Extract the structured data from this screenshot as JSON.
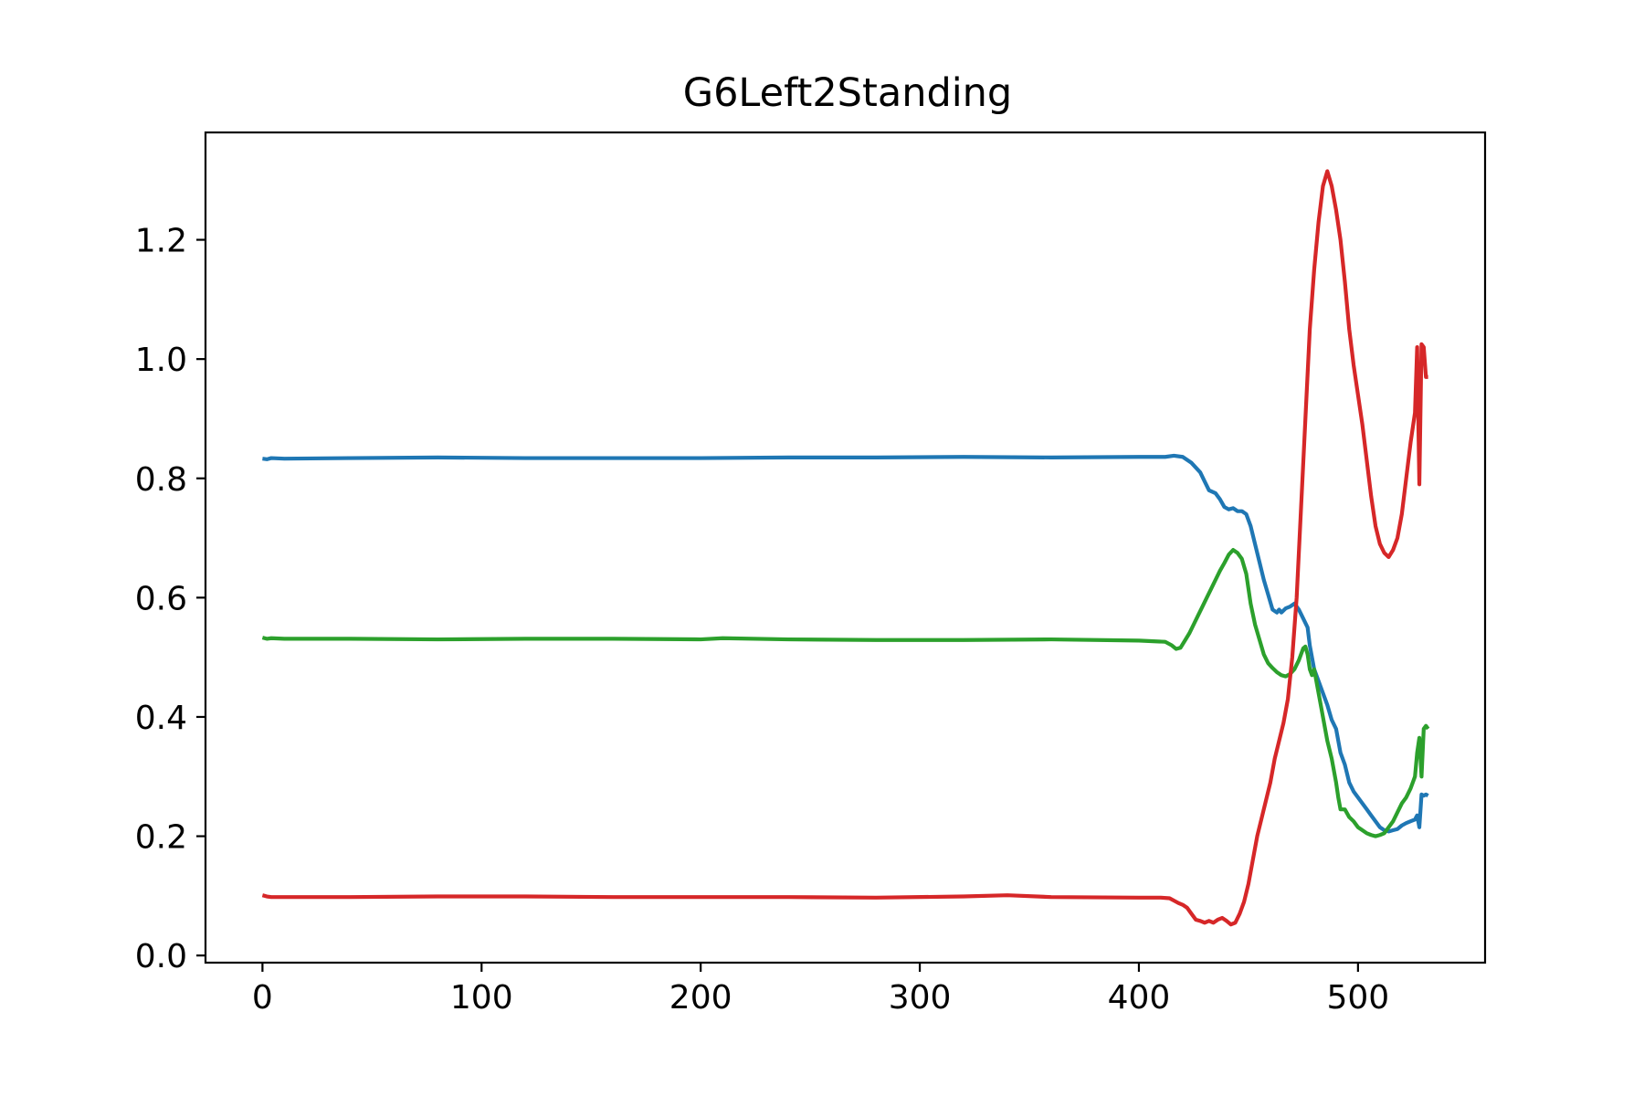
{
  "chart_data": {
    "type": "line",
    "title": "G6Left2Standing",
    "xlabel": "",
    "ylabel": "",
    "xlim": [
      -26,
      558
    ],
    "ylim": [
      -0.012,
      1.38
    ],
    "xticks": [
      0,
      100,
      200,
      300,
      400,
      500
    ],
    "xtick_labels": [
      "0",
      "100",
      "200",
      "300",
      "400",
      "500"
    ],
    "yticks": [
      0.0,
      0.2,
      0.4,
      0.6,
      0.8,
      1.0,
      1.2
    ],
    "ytick_labels": [
      "0.0",
      "0.2",
      "0.4",
      "0.6",
      "0.8",
      "1.0",
      "1.2"
    ],
    "grid": false,
    "legend": false,
    "series": [
      {
        "color": "#1f77b4",
        "points": [
          [
            0,
            0.833
          ],
          [
            2,
            0.832
          ],
          [
            4,
            0.834
          ],
          [
            10,
            0.833
          ],
          [
            40,
            0.834
          ],
          [
            80,
            0.835
          ],
          [
            120,
            0.834
          ],
          [
            160,
            0.834
          ],
          [
            200,
            0.834
          ],
          [
            240,
            0.835
          ],
          [
            280,
            0.835
          ],
          [
            320,
            0.836
          ],
          [
            360,
            0.835
          ],
          [
            400,
            0.836
          ],
          [
            412,
            0.836
          ],
          [
            416,
            0.838
          ],
          [
            420,
            0.836
          ],
          [
            424,
            0.826
          ],
          [
            428,
            0.81
          ],
          [
            430,
            0.795
          ],
          [
            432,
            0.78
          ],
          [
            435,
            0.775
          ],
          [
            437,
            0.765
          ],
          [
            439,
            0.752
          ],
          [
            441,
            0.748
          ],
          [
            443,
            0.75
          ],
          [
            445,
            0.745
          ],
          [
            447,
            0.745
          ],
          [
            449,
            0.74
          ],
          [
            451,
            0.72
          ],
          [
            453,
            0.69
          ],
          [
            455,
            0.66
          ],
          [
            457,
            0.63
          ],
          [
            459,
            0.605
          ],
          [
            461,
            0.58
          ],
          [
            463,
            0.575
          ],
          [
            464,
            0.58
          ],
          [
            465,
            0.575
          ],
          [
            467,
            0.582
          ],
          [
            469,
            0.585
          ],
          [
            471,
            0.59
          ],
          [
            473,
            0.58
          ],
          [
            475,
            0.565
          ],
          [
            477,
            0.55
          ],
          [
            478,
            0.52
          ],
          [
            480,
            0.48
          ],
          [
            482,
            0.46
          ],
          [
            484,
            0.44
          ],
          [
            486,
            0.42
          ],
          [
            488,
            0.395
          ],
          [
            490,
            0.38
          ],
          [
            492,
            0.34
          ],
          [
            494,
            0.32
          ],
          [
            496,
            0.29
          ],
          [
            498,
            0.275
          ],
          [
            500,
            0.265
          ],
          [
            502,
            0.255
          ],
          [
            504,
            0.245
          ],
          [
            506,
            0.235
          ],
          [
            508,
            0.225
          ],
          [
            510,
            0.215
          ],
          [
            512,
            0.21
          ],
          [
            514,
            0.208
          ],
          [
            516,
            0.21
          ],
          [
            518,
            0.212
          ],
          [
            520,
            0.218
          ],
          [
            522,
            0.222
          ],
          [
            524,
            0.225
          ],
          [
            526,
            0.228
          ],
          [
            527,
            0.235
          ],
          [
            528,
            0.215
          ],
          [
            529,
            0.27
          ],
          [
            530,
            0.268
          ],
          [
            531,
            0.27
          ],
          [
            532,
            0.268
          ]
        ]
      },
      {
        "color": "#2ca02c",
        "points": [
          [
            0,
            0.533
          ],
          [
            2,
            0.531
          ],
          [
            4,
            0.532
          ],
          [
            10,
            0.531
          ],
          [
            40,
            0.531
          ],
          [
            80,
            0.53
          ],
          [
            120,
            0.531
          ],
          [
            160,
            0.531
          ],
          [
            200,
            0.53
          ],
          [
            210,
            0.532
          ],
          [
            240,
            0.53
          ],
          [
            280,
            0.529
          ],
          [
            320,
            0.529
          ],
          [
            360,
            0.53
          ],
          [
            400,
            0.528
          ],
          [
            412,
            0.526
          ],
          [
            415,
            0.52
          ],
          [
            417,
            0.514
          ],
          [
            419,
            0.516
          ],
          [
            421,
            0.528
          ],
          [
            423,
            0.54
          ],
          [
            425,
            0.555
          ],
          [
            427,
            0.57
          ],
          [
            429,
            0.585
          ],
          [
            431,
            0.6
          ],
          [
            433,
            0.615
          ],
          [
            435,
            0.63
          ],
          [
            437,
            0.645
          ],
          [
            439,
            0.658
          ],
          [
            441,
            0.672
          ],
          [
            443,
            0.68
          ],
          [
            445,
            0.675
          ],
          [
            447,
            0.665
          ],
          [
            449,
            0.64
          ],
          [
            451,
            0.59
          ],
          [
            453,
            0.555
          ],
          [
            455,
            0.53
          ],
          [
            457,
            0.505
          ],
          [
            459,
            0.49
          ],
          [
            461,
            0.482
          ],
          [
            463,
            0.475
          ],
          [
            465,
            0.47
          ],
          [
            467,
            0.468
          ],
          [
            469,
            0.472
          ],
          [
            471,
            0.48
          ],
          [
            473,
            0.495
          ],
          [
            475,
            0.515
          ],
          [
            476,
            0.518
          ],
          [
            477,
            0.505
          ],
          [
            478,
            0.48
          ],
          [
            479,
            0.47
          ],
          [
            480,
            0.48
          ],
          [
            482,
            0.44
          ],
          [
            484,
            0.4
          ],
          [
            486,
            0.36
          ],
          [
            488,
            0.33
          ],
          [
            490,
            0.29
          ],
          [
            491,
            0.265
          ],
          [
            492,
            0.245
          ],
          [
            494,
            0.245
          ],
          [
            496,
            0.232
          ],
          [
            498,
            0.225
          ],
          [
            500,
            0.215
          ],
          [
            502,
            0.21
          ],
          [
            504,
            0.205
          ],
          [
            506,
            0.202
          ],
          [
            508,
            0.2
          ],
          [
            510,
            0.202
          ],
          [
            512,
            0.205
          ],
          [
            514,
            0.215
          ],
          [
            516,
            0.225
          ],
          [
            518,
            0.24
          ],
          [
            520,
            0.255
          ],
          [
            522,
            0.265
          ],
          [
            524,
            0.28
          ],
          [
            526,
            0.3
          ],
          [
            527,
            0.34
          ],
          [
            528,
            0.365
          ],
          [
            529,
            0.3
          ],
          [
            530,
            0.38
          ],
          [
            531,
            0.385
          ],
          [
            532,
            0.38
          ]
        ]
      },
      {
        "color": "#d62728",
        "points": [
          [
            0,
            0.101
          ],
          [
            2,
            0.099
          ],
          [
            4,
            0.098
          ],
          [
            10,
            0.098
          ],
          [
            40,
            0.098
          ],
          [
            80,
            0.099
          ],
          [
            120,
            0.099
          ],
          [
            160,
            0.098
          ],
          [
            200,
            0.098
          ],
          [
            240,
            0.098
          ],
          [
            280,
            0.097
          ],
          [
            320,
            0.099
          ],
          [
            340,
            0.101
          ],
          [
            360,
            0.098
          ],
          [
            400,
            0.097
          ],
          [
            410,
            0.097
          ],
          [
            414,
            0.096
          ],
          [
            416,
            0.092
          ],
          [
            418,
            0.088
          ],
          [
            420,
            0.085
          ],
          [
            422,
            0.08
          ],
          [
            424,
            0.07
          ],
          [
            426,
            0.06
          ],
          [
            428,
            0.058
          ],
          [
            430,
            0.055
          ],
          [
            432,
            0.058
          ],
          [
            434,
            0.055
          ],
          [
            436,
            0.06
          ],
          [
            438,
            0.063
          ],
          [
            440,
            0.058
          ],
          [
            442,
            0.052
          ],
          [
            444,
            0.055
          ],
          [
            446,
            0.07
          ],
          [
            448,
            0.09
          ],
          [
            450,
            0.12
          ],
          [
            452,
            0.16
          ],
          [
            454,
            0.2
          ],
          [
            456,
            0.23
          ],
          [
            458,
            0.26
          ],
          [
            460,
            0.29
          ],
          [
            462,
            0.33
          ],
          [
            464,
            0.36
          ],
          [
            466,
            0.39
          ],
          [
            468,
            0.43
          ],
          [
            470,
            0.5
          ],
          [
            472,
            0.6
          ],
          [
            474,
            0.75
          ],
          [
            476,
            0.9
          ],
          [
            478,
            1.05
          ],
          [
            480,
            1.15
          ],
          [
            482,
            1.23
          ],
          [
            484,
            1.29
          ],
          [
            486,
            1.315
          ],
          [
            488,
            1.29
          ],
          [
            490,
            1.25
          ],
          [
            492,
            1.2
          ],
          [
            494,
            1.13
          ],
          [
            496,
            1.05
          ],
          [
            498,
            0.99
          ],
          [
            500,
            0.94
          ],
          [
            502,
            0.89
          ],
          [
            504,
            0.83
          ],
          [
            506,
            0.77
          ],
          [
            508,
            0.72
          ],
          [
            510,
            0.69
          ],
          [
            512,
            0.675
          ],
          [
            514,
            0.668
          ],
          [
            516,
            0.68
          ],
          [
            518,
            0.7
          ],
          [
            520,
            0.74
          ],
          [
            522,
            0.8
          ],
          [
            524,
            0.86
          ],
          [
            526,
            0.91
          ],
          [
            527,
            1.02
          ],
          [
            528,
            0.79
          ],
          [
            529,
            1.025
          ],
          [
            530,
            1.02
          ],
          [
            531,
            0.97
          ],
          [
            532,
            0.97
          ]
        ]
      }
    ]
  }
}
